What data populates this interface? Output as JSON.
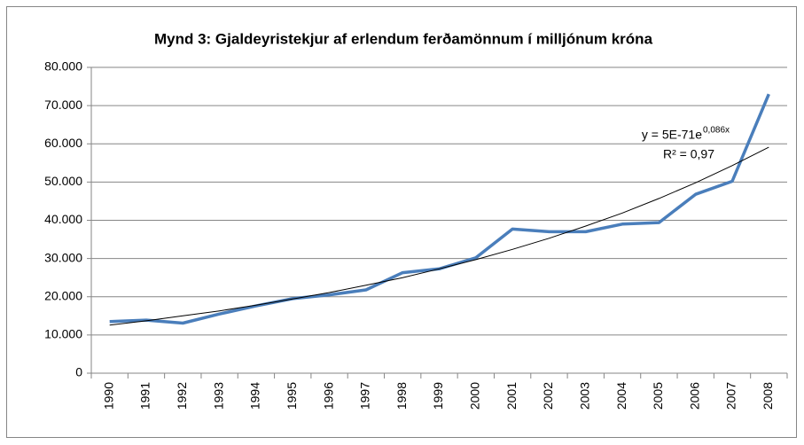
{
  "chart_data": {
    "type": "line",
    "title": "Mynd 3: Gjaldeyristekjur af erlendum ferðamönnum í milljónum króna",
    "categories": [
      "1990",
      "1991",
      "1992",
      "1993",
      "1994",
      "1995",
      "1996",
      "1997",
      "1998",
      "1999",
      "2000",
      "2001",
      "2002",
      "2003",
      "2004",
      "2005",
      "2006",
      "2007",
      "2008"
    ],
    "series": [
      {
        "color": "#4a7ebb",
        "values": [
          13500,
          13900,
          13100,
          15500,
          17600,
          19500,
          20500,
          21800,
          26300,
          27300,
          30200,
          37700,
          37000,
          37000,
          39000,
          39400,
          46800,
          50200,
          73000
        ]
      }
    ],
    "trendline": {
      "color": "#000000",
      "values": [
        12600,
        13700,
        15000,
        16300,
        17800,
        19400,
        21100,
        23000,
        25000,
        27300,
        29700,
        32400,
        35300,
        38500,
        41900,
        45700,
        49800,
        54300,
        59100
      ]
    },
    "annotations": [
      "y = 5E-71e",
      "0,086x",
      "R² = 0,97"
    ],
    "ylim": [
      0,
      80000
    ],
    "yticks": [
      0,
      {
        "value": 10000,
        "label": "10.000"
      },
      {
        "value": 20000,
        "label": "20.000"
      },
      {
        "value": 30000,
        "label": "30.000"
      },
      {
        "value": 40000,
        "label": "40.000"
      },
      {
        "value": 50000,
        "label": "50.000"
      },
      {
        "value": 60000,
        "label": "60.000"
      },
      {
        "value": 70000,
        "label": "70.000"
      },
      {
        "value": 80000,
        "label": "80.000"
      }
    ],
    "grid": true
  }
}
